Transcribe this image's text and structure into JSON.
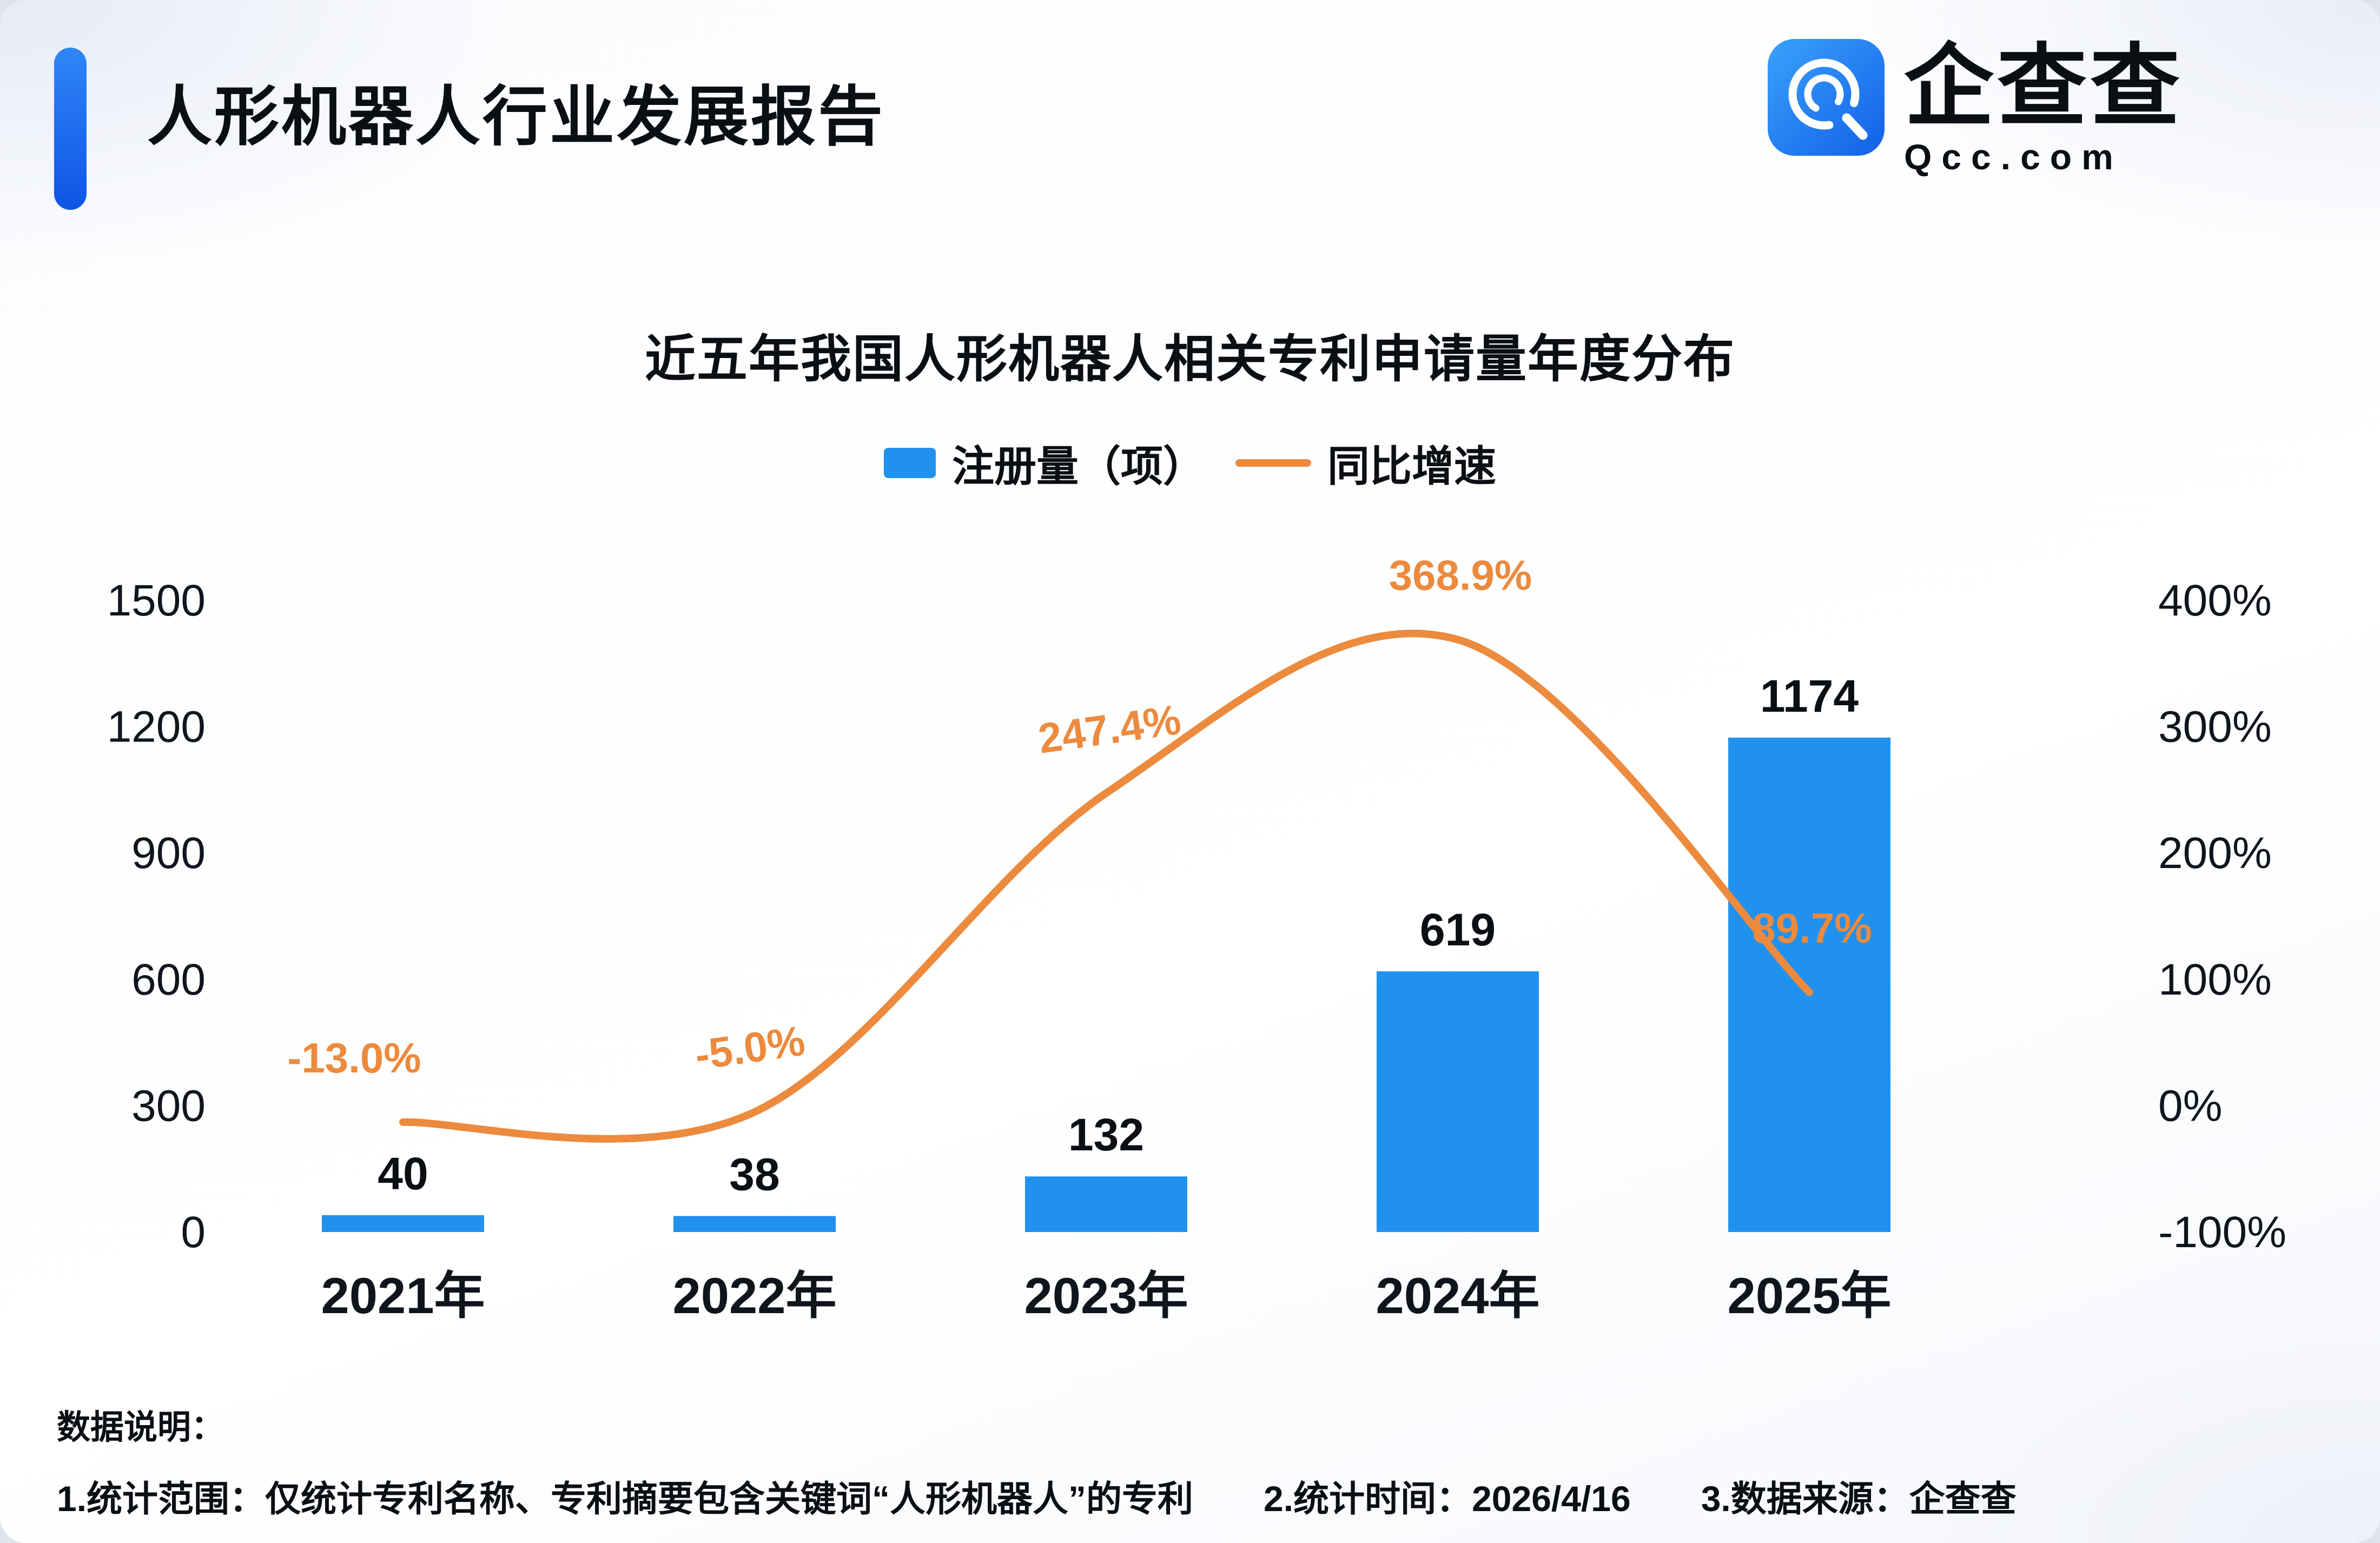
{
  "header": {
    "title": "人形机器人行业发展报告",
    "logo_text": "企查查",
    "logo_sub": "Qcc.com"
  },
  "colors": {
    "accent_blue": "#1b6bf2",
    "bar_blue": "#2191ee",
    "line_orange": "#ec8a3e"
  },
  "chart_data": {
    "type": "bar",
    "title": "近五年我国人形机器人相关专利申请量年度分布",
    "categories": [
      "2021年",
      "2022年",
      "2023年",
      "2024年",
      "2025年"
    ],
    "series": [
      {
        "name": "注册量（项）",
        "type": "bar",
        "axis": "left",
        "color": "#2191ee",
        "values": [
          40,
          38,
          132,
          619,
          1174
        ]
      },
      {
        "name": "同比增速",
        "type": "line",
        "axis": "right",
        "color": "#ec8a3e",
        "values": [
          -13.0,
          -5.0,
          247.4,
          368.9,
          89.7
        ],
        "labels": [
          "-13.0%",
          "-5.0%",
          "247.4%",
          "368.9%",
          "89.7%"
        ]
      }
    ],
    "left_axis": {
      "min": 0,
      "max": 1500,
      "ticks": [
        0,
        300,
        600,
        900,
        1200,
        1500
      ]
    },
    "right_axis": {
      "min": -100,
      "max": 400,
      "ticks": [
        "-100%",
        "0%",
        "100%",
        "200%",
        "300%",
        "400%"
      ]
    },
    "grid": false,
    "legend_position": "top"
  },
  "footer": {
    "label": "数据说明：",
    "notes": [
      "1.统计范围：仅统计专利名称、专利摘要包含关键词“人形机器人”的专利",
      "2.统计时间：2026/4/16",
      "3.数据来源：企查查"
    ]
  }
}
